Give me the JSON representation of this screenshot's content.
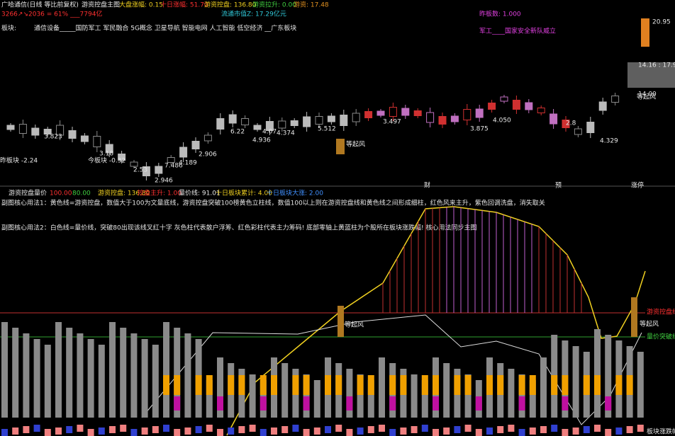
{
  "main_panel": {
    "title": "广哈通信(日线 等比前复权)",
    "indicator": "游资控盘主图",
    "stats": [
      "大盘涨幅: 0.15",
      "十日涨幅: 51.70",
      "游资控盘: 136.80",
      "游资拉升: 0.00",
      "游资: 17.48"
    ],
    "market_line": "3266↗↘2036 = 61% ___7794亿",
    "float_value": "流通市值Z: 17.29亿元",
    "prev_limit": "昨板数: 1.000",
    "sector_label": "板块:",
    "sectors": "通信设备_____国防军工 军民融合 5G概念 卫星导航 智能电网 人工智能 低空经济 __广东板块",
    "theme": "军工____国家安全新队威立",
    "price_labels": [
      "3.823",
      "3.18",
      "今板块 -0.32",
      "2.53",
      "2.946",
      "7.486",
      "4.189",
      "2.906",
      "6.22",
      "4.936",
      "4.07",
      "4.374",
      "5.512",
      "3.497",
      "3.875",
      "4.050",
      "2.8",
      "4.329",
      "昨板块 -2.24",
      "等起风",
      "20.95",
      "14.16 : 17.90",
      "14.00",
      "等起风"
    ],
    "markers": [
      "财",
      "预",
      "涨停"
    ]
  },
  "sub_panel": {
    "indicator": "游资控盘量价",
    "stats": [
      "100.00",
      "80.00",
      "游资控盘: 136.80",
      "控盘主升: 1.00",
      "量价线: 91.01",
      "十日板块累计: 4.00",
      "十日板块大涨: 2.00"
    ],
    "note1": "副图核心用法1：黄色线=游资控盘，数值大于100为文量底线，游资控盘突破100榜黄色立柱线，数值100以上则在游资控盘线和黄色线之间形成细柱，红色风来主升，紫色回调洗盘，消失取关",
    "note2": "副图核心用法2：白色线=量价线，突破80出现该线叉红十字   灰色柱代表散户浮筹、红色彩柱代表主力筹码!  底部零轴上黄蓝柱为个股所在板块涨跌幅!  核心用法同步主图",
    "side_labels": [
      "游资控盘线",
      "等起风",
      "量价突破线",
      "板块涨跌幅"
    ],
    "mid_label": "等起风"
  }
}
